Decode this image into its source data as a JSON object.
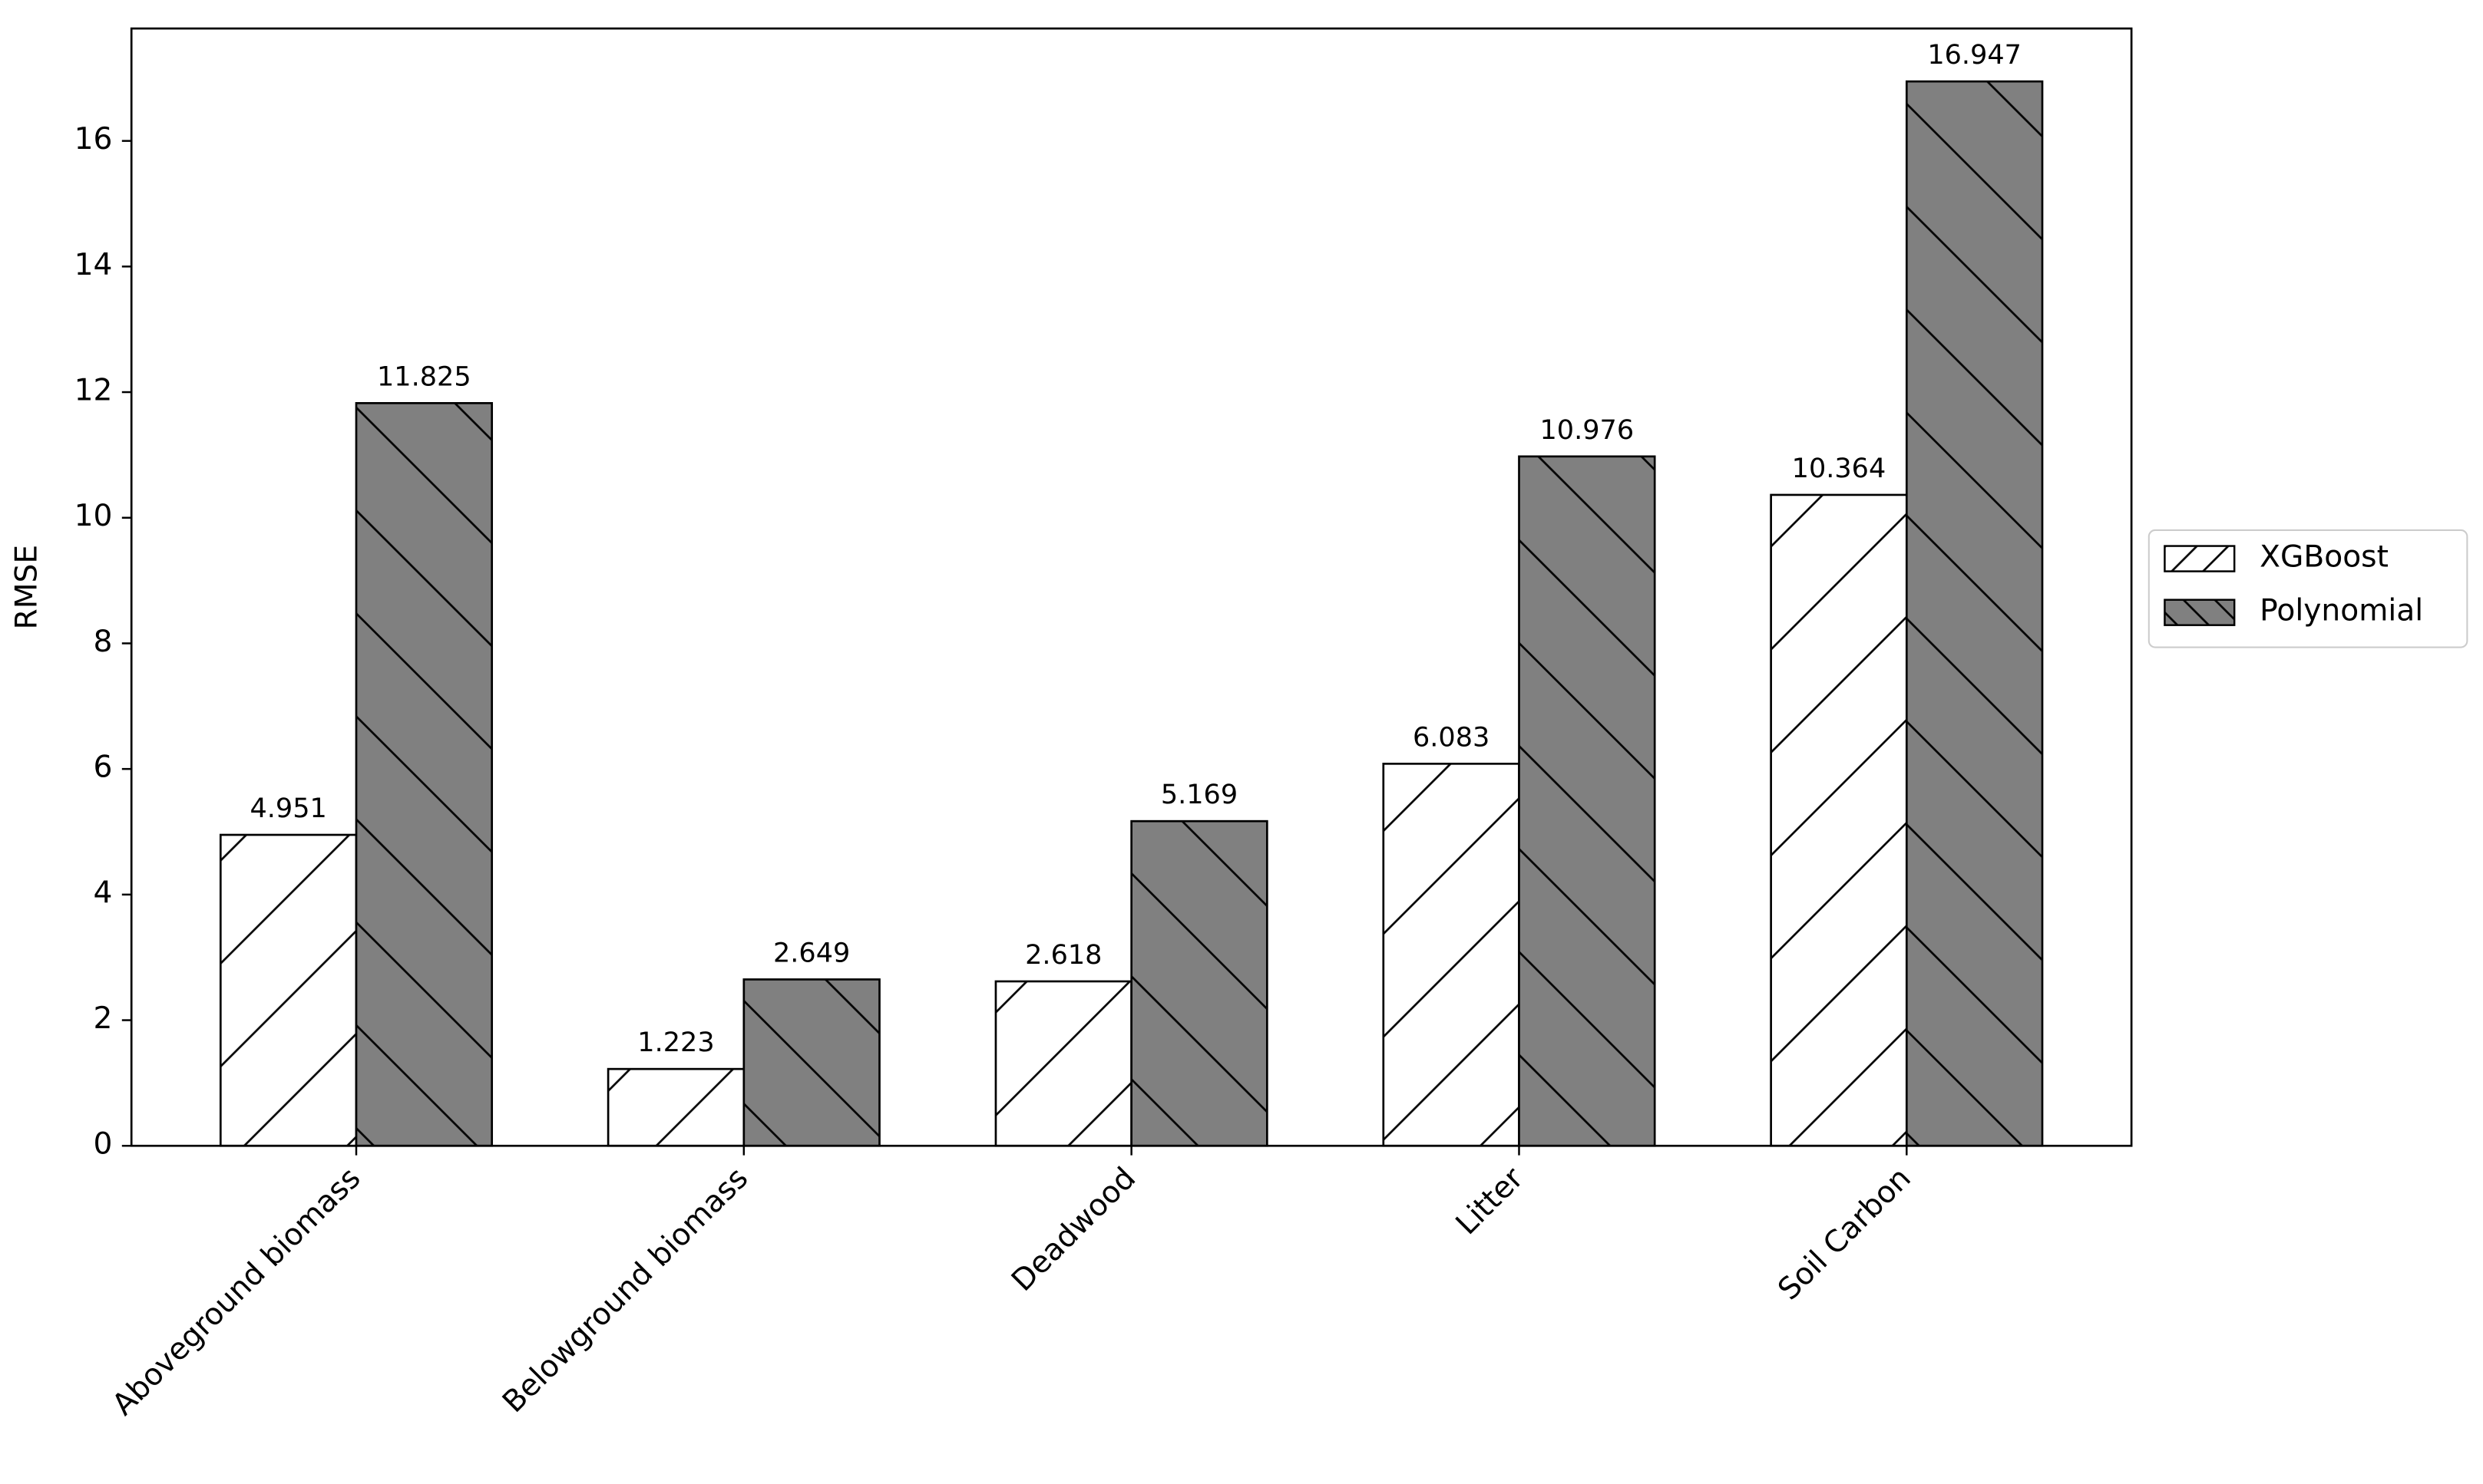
{
  "chart_data": {
    "type": "bar",
    "y_label": "RMSE",
    "categories": [
      "Aboveground biomass",
      "Belowground biomass",
      "Deadwood",
      "Litter",
      "Soil Carbon"
    ],
    "series": [
      {
        "name": "XGBoost",
        "color": "#ffffff",
        "hatch": "/",
        "values": [
          4.951,
          1.223,
          2.618,
          6.083,
          10.364
        ]
      },
      {
        "name": "Polynomial",
        "color": "#808080",
        "hatch": "\\",
        "values": [
          11.825,
          2.649,
          5.169,
          10.976,
          16.947
        ]
      }
    ],
    "ylim": [
      0,
      17.79
    ],
    "yticks": [
      0,
      2,
      4,
      6,
      8,
      10,
      12,
      14,
      16
    ],
    "legend": "right",
    "value_labels_shown": true
  }
}
